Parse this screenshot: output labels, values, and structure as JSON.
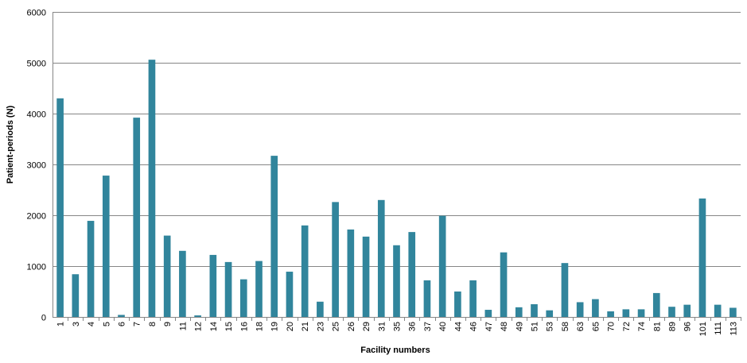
{
  "chart_data": {
    "type": "bar",
    "title": "",
    "xlabel": "Facility numbers",
    "ylabel": "Patient-periods (N)",
    "ylim": [
      0,
      6000
    ],
    "yticks": [
      0,
      1000,
      2000,
      3000,
      4000,
      5000,
      6000
    ],
    "grid": "horizontal",
    "bar_color": "#31859C",
    "categories": [
      "1",
      "3",
      "4",
      "5",
      "6",
      "7",
      "8",
      "9",
      "11",
      "12",
      "14",
      "15",
      "16",
      "18",
      "19",
      "20",
      "21",
      "23",
      "25",
      "26",
      "29",
      "31",
      "35",
      "36",
      "37",
      "40",
      "44",
      "46",
      "47",
      "48",
      "49",
      "51",
      "53",
      "58",
      "63",
      "65",
      "70",
      "72",
      "74",
      "81",
      "89",
      "96",
      "101",
      "111",
      "113"
    ],
    "values": [
      4300,
      840,
      1890,
      2780,
      40,
      3920,
      5060,
      1600,
      1300,
      30,
      1220,
      1080,
      740,
      1100,
      3170,
      890,
      1800,
      300,
      2260,
      1720,
      1580,
      2300,
      1410,
      1670,
      720,
      1990,
      500,
      720,
      140,
      1270,
      190,
      250,
      130,
      1060,
      290,
      350,
      110,
      150,
      150,
      470,
      200,
      240,
      2330,
      240,
      180
    ]
  }
}
